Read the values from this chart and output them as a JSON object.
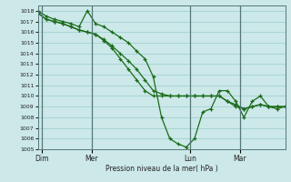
{
  "xlabel": "Pression niveau de la mer( hPa )",
  "ylim": [
    1005,
    1018.5
  ],
  "yticks": [
    1005,
    1006,
    1007,
    1008,
    1009,
    1010,
    1011,
    1012,
    1013,
    1014,
    1015,
    1016,
    1017,
    1018
  ],
  "background_color": "#cce8e8",
  "grid_color": "#99cccc",
  "line_color": "#1a6b1a",
  "day_labels": [
    "Dim",
    "Mer",
    "Lun",
    "Mar"
  ],
  "day_positions": [
    0.5,
    6.5,
    18.5,
    24.5
  ],
  "xlim": [
    0,
    30
  ],
  "series1_x": [
    0,
    1,
    2,
    3,
    4,
    5,
    6,
    7,
    8,
    9,
    10,
    11,
    12,
    13,
    14,
    15,
    16,
    17,
    18,
    19,
    20,
    21,
    22,
    23,
    24,
    25,
    26,
    27,
    28,
    29,
    30
  ],
  "series1_y": [
    1017.8,
    1017.2,
    1017.0,
    1016.8,
    1016.5,
    1016.2,
    1016.0,
    1015.8,
    1015.2,
    1014.5,
    1013.5,
    1012.5,
    1011.5,
    1010.5,
    1010.0,
    1010.0,
    1010.0,
    1010.0,
    1010.0,
    1010.0,
    1010.0,
    1010.0,
    1010.0,
    1009.5,
    1009.0,
    1008.8,
    1009.0,
    1009.2,
    1009.0,
    1009.0,
    1009.0
  ],
  "series2_x": [
    0,
    1,
    2,
    3,
    4,
    5,
    6,
    7,
    8,
    9,
    10,
    11,
    12,
    13,
    14,
    15,
    16,
    17,
    18,
    19,
    20,
    21,
    22,
    23,
    24,
    25,
    26,
    27,
    28,
    29,
    30
  ],
  "series2_y": [
    1017.8,
    1017.2,
    1017.0,
    1016.8,
    1016.5,
    1016.2,
    1016.0,
    1015.8,
    1015.3,
    1014.7,
    1014.0,
    1013.3,
    1012.5,
    1011.5,
    1010.5,
    1010.2,
    1010.0,
    1010.0,
    1010.0,
    1010.0,
    1010.0,
    1010.0,
    1010.0,
    1009.5,
    1009.2,
    1008.8,
    1009.0,
    1009.2,
    1009.0,
    1009.0,
    1009.0
  ],
  "series3_x": [
    0,
    1,
    2,
    3,
    4,
    5,
    6,
    7,
    8,
    9,
    10,
    11,
    12,
    13,
    14,
    15,
    16,
    17,
    18,
    19,
    20,
    21,
    22,
    23,
    24,
    25,
    26,
    27,
    28,
    29,
    30
  ],
  "series3_y": [
    1018.0,
    1017.5,
    1017.2,
    1017.0,
    1016.8,
    1016.5,
    1018.0,
    1016.8,
    1016.5,
    1016.0,
    1015.5,
    1015.0,
    1014.2,
    1013.5,
    1011.8,
    1008.0,
    1006.0,
    1005.5,
    1005.2,
    1006.0,
    1008.5,
    1008.8,
    1010.5,
    1010.5,
    1009.5,
    1008.0,
    1009.5,
    1010.0,
    1009.0,
    1008.8,
    1009.0
  ]
}
